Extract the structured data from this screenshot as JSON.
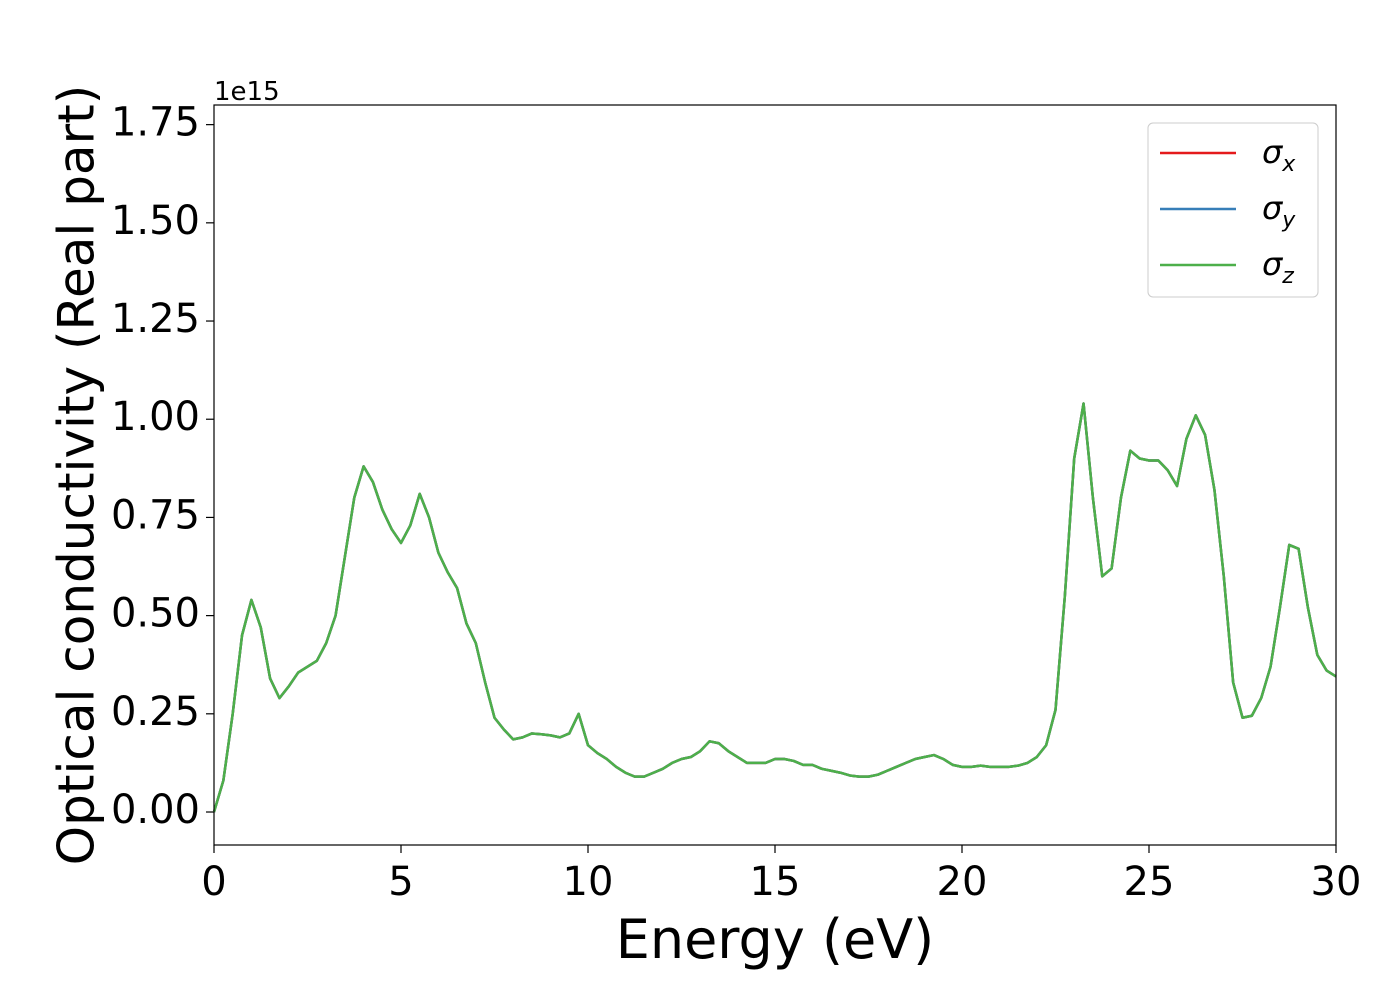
{
  "chart_data": {
    "type": "line",
    "xlabel": "Energy (eV)",
    "ylabel": "Optical conductivity (Real part)",
    "offset_label": "1e15",
    "xlim": [
      0,
      30
    ],
    "xticks": [
      0,
      5,
      10,
      15,
      20,
      25,
      30
    ],
    "ylim": [
      -0.084,
      1.8
    ],
    "yticks": [
      {
        "value": 0,
        "label": "0.00"
      },
      0.25,
      {
        "value": 0.5,
        "label": "0.50"
      },
      0.75,
      {
        "value": 1,
        "label": "1.00"
      },
      1.25,
      {
        "value": 1.5,
        "label": "1.50"
      },
      1.75
    ],
    "legend": "upper right",
    "x": [
      0,
      0.25,
      0.5,
      0.75,
      1,
      1.25,
      1.5,
      1.75,
      2,
      2.25,
      2.5,
      2.75,
      3,
      3.25,
      3.5,
      3.75,
      4,
      4.25,
      4.5,
      4.75,
      5,
      5.25,
      5.5,
      5.75,
      6,
      6.25,
      6.5,
      6.75,
      7,
      7.25,
      7.5,
      7.75,
      8,
      8.25,
      8.5,
      8.75,
      9,
      9.25,
      9.5,
      9.75,
      10,
      10.25,
      10.5,
      10.75,
      11,
      11.25,
      11.5,
      11.75,
      12,
      12.25,
      12.5,
      12.75,
      13,
      13.25,
      13.5,
      13.75,
      14,
      14.25,
      14.5,
      14.75,
      15,
      15.25,
      15.5,
      15.75,
      16,
      16.25,
      16.5,
      16.75,
      17,
      17.25,
      17.5,
      17.75,
      18,
      18.25,
      18.5,
      18.75,
      19,
      19.25,
      19.5,
      19.75,
      20,
      20.25,
      20.5,
      20.75,
      21,
      21.25,
      21.5,
      21.75,
      22,
      22.25,
      22.5,
      22.75,
      23,
      23.25,
      23.5,
      23.75,
      24,
      24.25,
      24.5,
      24.75,
      25,
      25.25,
      25.5,
      25.75,
      26,
      26.25,
      26.5,
      26.75,
      27,
      27.25,
      27.5,
      27.75,
      28,
      28.25,
      28.5,
      28.75,
      29,
      29.25,
      29.5,
      29.75,
      30
    ],
    "series": [
      {
        "name": "σx",
        "color": "#e41a1c",
        "values": [
          0,
          0.08,
          0.25,
          0.45,
          0.54,
          0.47,
          0.34,
          0.29,
          0.32,
          0.355,
          0.37,
          0.385,
          0.43,
          0.5,
          0.65,
          0.8,
          0.88,
          0.84,
          0.77,
          0.72,
          0.685,
          0.73,
          0.81,
          0.75,
          0.66,
          0.61,
          0.57,
          0.48,
          0.43,
          0.33,
          0.24,
          0.21,
          0.185,
          0.19,
          0.2,
          0.198,
          0.195,
          0.19,
          0.2,
          0.25,
          0.17,
          0.15,
          0.135,
          0.115,
          0.1,
          0.09,
          0.09,
          0.1,
          0.11,
          0.125,
          0.135,
          0.14,
          0.155,
          0.18,
          0.175,
          0.155,
          0.14,
          0.125,
          0.125,
          0.125,
          0.135,
          0.135,
          0.13,
          0.12,
          0.12,
          0.11,
          0.105,
          0.1,
          0.093,
          0.09,
          0.09,
          0.095,
          0.105,
          0.115,
          0.125,
          0.135,
          0.14,
          0.145,
          0.135,
          0.12,
          0.115,
          0.115,
          0.118,
          0.115,
          0.115,
          0.115,
          0.118,
          0.125,
          0.14,
          0.17,
          0.26,
          0.55,
          0.9,
          1.04,
          0.8,
          0.6,
          0.62,
          0.8,
          0.92,
          0.9,
          0.895,
          0.895,
          0.87,
          0.83,
          0.95,
          1.01,
          0.96,
          0.82,
          0.6,
          0.33,
          0.24,
          0.245,
          0.29,
          0.37,
          0.52,
          0.68,
          0.67,
          0.52,
          0.4,
          0.36,
          0.345
        ]
      },
      {
        "name": "σy",
        "color": "#377eb8",
        "values": [
          0,
          0.08,
          0.25,
          0.45,
          0.54,
          0.47,
          0.34,
          0.29,
          0.32,
          0.355,
          0.37,
          0.385,
          0.43,
          0.5,
          0.65,
          0.8,
          0.88,
          0.84,
          0.77,
          0.72,
          0.685,
          0.73,
          0.81,
          0.75,
          0.66,
          0.61,
          0.57,
          0.48,
          0.43,
          0.33,
          0.24,
          0.21,
          0.185,
          0.19,
          0.2,
          0.198,
          0.195,
          0.19,
          0.2,
          0.25,
          0.17,
          0.15,
          0.135,
          0.115,
          0.1,
          0.09,
          0.09,
          0.1,
          0.11,
          0.125,
          0.135,
          0.14,
          0.155,
          0.18,
          0.175,
          0.155,
          0.14,
          0.125,
          0.125,
          0.125,
          0.135,
          0.135,
          0.13,
          0.12,
          0.12,
          0.11,
          0.105,
          0.1,
          0.093,
          0.09,
          0.09,
          0.095,
          0.105,
          0.115,
          0.125,
          0.135,
          0.14,
          0.145,
          0.135,
          0.12,
          0.115,
          0.115,
          0.118,
          0.115,
          0.115,
          0.115,
          0.118,
          0.125,
          0.14,
          0.17,
          0.26,
          0.55,
          0.9,
          1.04,
          0.8,
          0.6,
          0.62,
          0.8,
          0.92,
          0.9,
          0.895,
          0.895,
          0.87,
          0.83,
          0.95,
          1.01,
          0.96,
          0.82,
          0.6,
          0.33,
          0.24,
          0.245,
          0.29,
          0.37,
          0.52,
          0.68,
          0.67,
          0.52,
          0.4,
          0.36,
          0.345
        ]
      },
      {
        "name": "σz",
        "color": "#4daf4a",
        "values": [
          0,
          0.08,
          0.25,
          0.45,
          0.54,
          0.47,
          0.34,
          0.29,
          0.32,
          0.355,
          0.37,
          0.385,
          0.43,
          0.5,
          0.65,
          0.8,
          0.88,
          0.84,
          0.77,
          0.72,
          0.685,
          0.73,
          0.81,
          0.75,
          0.66,
          0.61,
          0.57,
          0.48,
          0.43,
          0.33,
          0.24,
          0.21,
          0.185,
          0.19,
          0.2,
          0.198,
          0.195,
          0.19,
          0.2,
          0.25,
          0.17,
          0.15,
          0.135,
          0.115,
          0.1,
          0.09,
          0.09,
          0.1,
          0.11,
          0.125,
          0.135,
          0.14,
          0.155,
          0.18,
          0.175,
          0.155,
          0.14,
          0.125,
          0.125,
          0.125,
          0.135,
          0.135,
          0.13,
          0.12,
          0.12,
          0.11,
          0.105,
          0.1,
          0.093,
          0.09,
          0.09,
          0.095,
          0.105,
          0.115,
          0.125,
          0.135,
          0.14,
          0.145,
          0.135,
          0.12,
          0.115,
          0.115,
          0.118,
          0.115,
          0.115,
          0.115,
          0.118,
          0.125,
          0.14,
          0.17,
          0.26,
          0.55,
          0.9,
          1.04,
          0.8,
          0.6,
          0.62,
          0.8,
          0.92,
          0.9,
          0.895,
          0.895,
          0.87,
          0.83,
          0.95,
          1.01,
          0.96,
          0.82,
          0.6,
          0.33,
          0.24,
          0.245,
          0.29,
          0.37,
          0.52,
          0.68,
          0.67,
          0.52,
          0.4,
          0.36,
          0.345
        ]
      }
    ]
  }
}
